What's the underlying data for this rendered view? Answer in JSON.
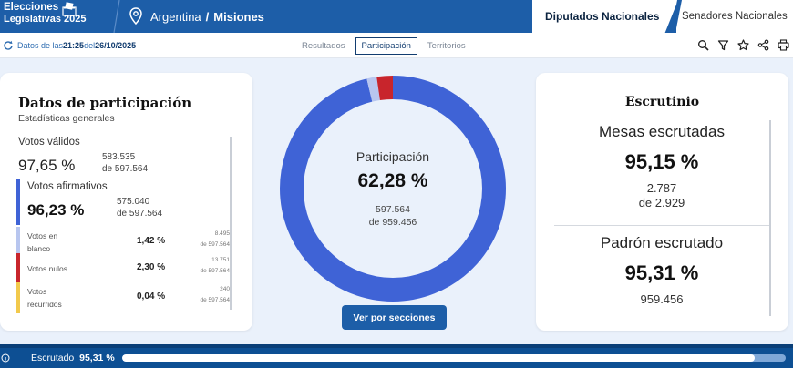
{
  "header": {
    "logo_line1": "Elecciones",
    "logo_line2": "Legislativas 2025",
    "location_country": "Argentina",
    "location_separator": "/",
    "location_province": "Misiones",
    "tab_active": "Diputados Nacionales",
    "tab_inactive": "Senadores Nacionales"
  },
  "toolbar": {
    "updated_prefix": "Datos de las ",
    "updated_time": "21:25",
    "updated_mid": " del ",
    "updated_date": "26/10/2025",
    "views": [
      "Resultados",
      "Participación",
      "Territorios"
    ],
    "active_view": "Participación",
    "icons": [
      "search-icon",
      "filter-icon",
      "star-icon",
      "share-icon",
      "print-icon"
    ]
  },
  "participacion": {
    "title": "Datos de participación",
    "subtitle": "Estadísticas generales",
    "votos_validos": {
      "label": "Votos válidos",
      "pct": "97,65 %",
      "count": "583.535",
      "total": "de 597.564"
    },
    "votos_afirmativos": {
      "label": "Votos afirmativos",
      "pct": "96,23 %",
      "count": "575.040",
      "total": "de 597.564"
    },
    "votos_blanco": {
      "label1": "Votos en",
      "label2": "blanco",
      "pct": "1,42 %",
      "count": "8.495",
      "total": "de 597.564"
    },
    "votos_nulos": {
      "label": "Votos nulos",
      "pct": "2,30 %",
      "count": "13.751",
      "total": "de 597.564"
    },
    "votos_recurridos": {
      "label1": "Votos",
      "label2": "recurridos",
      "pct": "0,04 %",
      "count": "240",
      "total": "de 597.564"
    }
  },
  "donut": {
    "label": "Participación",
    "pct": "62,28 %",
    "count": "597.564",
    "total": "de 959.456",
    "segments": [
      {
        "name": "afirmativos",
        "value": 96.23,
        "color": "#3f63d6"
      },
      {
        "name": "blanco",
        "value": 1.42,
        "color": "#b8c6ef"
      },
      {
        "name": "nulos",
        "value": 2.3,
        "color": "#c8252c"
      },
      {
        "name": "recurridos",
        "value": 0.04,
        "color": "#f2c94c"
      }
    ]
  },
  "button_label": "Ver por secciones",
  "escrutinio": {
    "title": "Escrutinio",
    "mesas_label": "Mesas escrutadas",
    "mesas_pct": "95,15 %",
    "mesas_count": "2.787",
    "mesas_total": "de 2.929",
    "padron_label": "Padrón escrutado",
    "padron_pct": "95,31 %",
    "padron_count": "959.456"
  },
  "footer": {
    "label": "Escrutado",
    "pct": "95,31 %",
    "progress": 0.9531
  },
  "colors": {
    "primary": "#1d5ea8",
    "afirmativos": "#3f63d6",
    "blanco": "#b8c6ef",
    "nulos": "#c8252c",
    "recurridos": "#f2c94c"
  }
}
